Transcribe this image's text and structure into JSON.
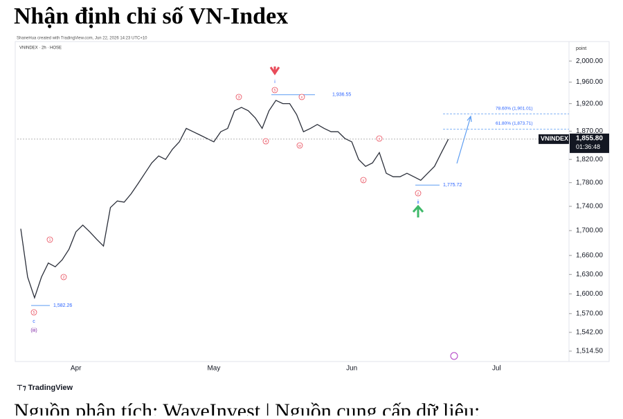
{
  "chart_data": {
    "type": "line",
    "title": "Nhận định chỉ số VN-Index",
    "credit": "ShaneHua created with TradingView.com, Jun 22, 2026 14:23 UTC+10",
    "symbol_header": "VNINDEX · 2h · HOSE",
    "axis_unit": "point",
    "logo": "TradingView",
    "caption": "Nguồn phân tích: WaveInvest | Nguồn cung cấp dữ liệu:",
    "log_scale": true,
    "color": "#2a2e39",
    "categories": [
      null,
      null,
      null,
      null,
      null,
      null,
      null,
      null,
      "Apr",
      null,
      null,
      null,
      null,
      null,
      null,
      null,
      null,
      null,
      null,
      null,
      null,
      null,
      null,
      null,
      null,
      null,
      null,
      null,
      "May",
      null,
      null,
      null,
      null,
      null,
      null,
      null,
      null,
      null,
      null,
      null,
      null,
      null,
      null,
      null,
      null,
      null,
      null,
      null,
      "Jun",
      null,
      null,
      null,
      null,
      null,
      null,
      null,
      null,
      null,
      null,
      null,
      null,
      null,
      null,
      null,
      null,
      null,
      null,
      null,
      null,
      "Jul",
      null,
      null,
      null,
      null,
      null,
      null,
      null,
      null,
      null,
      null
    ],
    "series": [
      {
        "name": "VNINDEX",
        "color": "#2a2e39",
        "values": [
          1703,
          1626,
          1594,
          1626,
          1648,
          1642,
          1653,
          1670,
          1698,
          1709,
          1698,
          1686,
          1675,
          1738,
          1749,
          1747,
          1761,
          1778,
          1796,
          1814,
          1826,
          1820,
          1838,
          1851,
          1875,
          1869,
          1863,
          1857,
          1851,
          1869,
          1875,
          1907,
          1913,
          1907,
          1894,
          1875,
          1907,
          1926,
          1920,
          1920,
          1900,
          1869,
          1875,
          1882,
          1875,
          1869,
          1869,
          1857,
          1851,
          1820,
          1808,
          1814,
          1832,
          1796,
          1790,
          1790,
          1796,
          1790,
          1784,
          1796,
          1808,
          1832,
          1855.8,
          null,
          null,
          null,
          null,
          null,
          null,
          null,
          null,
          null,
          null,
          null,
          null,
          null,
          null,
          null,
          null,
          null
        ]
      }
    ],
    "ylim": [
      1501.5,
      2035
    ],
    "yticks": [
      {
        "value": 2000,
        "label": "2,000.00"
      },
      {
        "value": 1960,
        "label": "1,960.00"
      },
      {
        "value": 1920,
        "label": "1,920.00"
      },
      {
        "value": 1870,
        "label": "1,870.00"
      },
      {
        "value": 1820,
        "label": "1,820.00"
      },
      {
        "value": 1780,
        "label": "1,780.00"
      },
      {
        "value": 1740,
        "label": "1,740.00"
      },
      {
        "value": 1700,
        "label": "1,700.00"
      },
      {
        "value": 1660,
        "label": "1,660.00"
      },
      {
        "value": 1630,
        "label": "1,630.00"
      },
      {
        "value": 1600,
        "label": "1,600.00"
      },
      {
        "value": 1570,
        "label": "1,570.00"
      },
      {
        "value": 1542,
        "label": "1,542.00"
      },
      {
        "value": 1514.5,
        "label": "1,514.50"
      }
    ],
    "levels": [
      {
        "value": 1936.55,
        "label": "1,936.55"
      },
      {
        "value": 1775.72,
        "label": "1,775.72"
      },
      {
        "value": 1582.26,
        "label": "1,582.26"
      }
    ],
    "fib_levels": [
      {
        "value": 1901.01,
        "label": "78.60% (1,901.01)"
      },
      {
        "value": 1873.71,
        "label": "61.80% (1,873.71)"
      }
    ],
    "last_price": {
      "value": 1855.8,
      "label": "1,855.80",
      "name": "VNINDEX",
      "countdown": "01:36:48"
    },
    "wave_labels": [
      "1",
      "2",
      "3",
      "4",
      "5",
      "w",
      "x",
      "y",
      "x",
      "z",
      "5"
    ],
    "degree_labels": [
      "i",
      "ii",
      "c",
      "(iii)"
    ]
  }
}
